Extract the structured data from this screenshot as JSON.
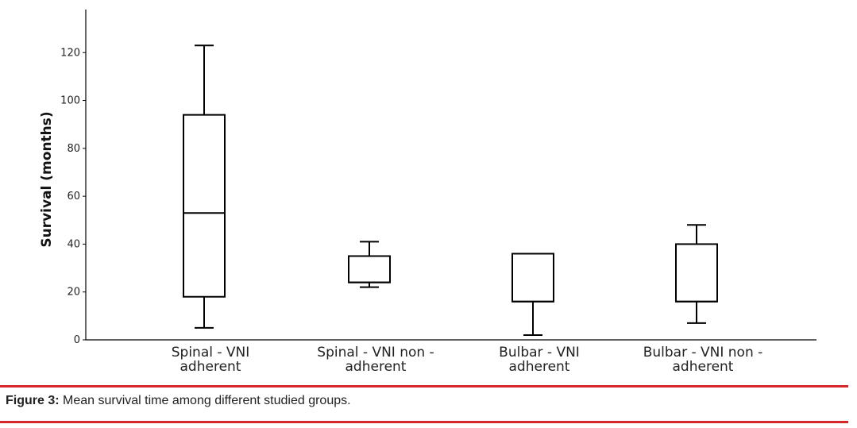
{
  "chart_data": {
    "type": "box",
    "ylabel": "Survival (months)",
    "yticks": [
      0,
      20,
      40,
      60,
      80,
      100,
      120
    ],
    "ylim": [
      0,
      138
    ],
    "grid": false,
    "categories": [
      {
        "lines": [
          "Spinal  -  VNI",
          "adherent"
        ]
      },
      {
        "lines": [
          "Spinal  -  VNI non -",
          "adherent"
        ]
      },
      {
        "lines": [
          "Bulbar  - VNI",
          "adherent"
        ]
      },
      {
        "lines": [
          "Bulbar  - VNI non -",
          "adherent"
        ]
      }
    ],
    "boxes": [
      {
        "whisker_low": 5,
        "q1": 18,
        "median": 53,
        "q3": 94,
        "whisker_high": 123
      },
      {
        "whisker_low": 22,
        "q1": 24,
        "median": 24,
        "q3": 35,
        "whisker_high": 41
      },
      {
        "whisker_low": 2,
        "q1": 16,
        "median": 16,
        "q3": 36,
        "whisker_high": 36
      },
      {
        "whisker_low": 7,
        "q1": 16,
        "median": 16,
        "q3": 40,
        "whisker_high": 48
      }
    ]
  },
  "caption": {
    "label": "Figure 3:",
    "text": " Mean survival time among different studied groups."
  },
  "colors": {
    "rule": "#d7262a",
    "box": "#000000"
  }
}
